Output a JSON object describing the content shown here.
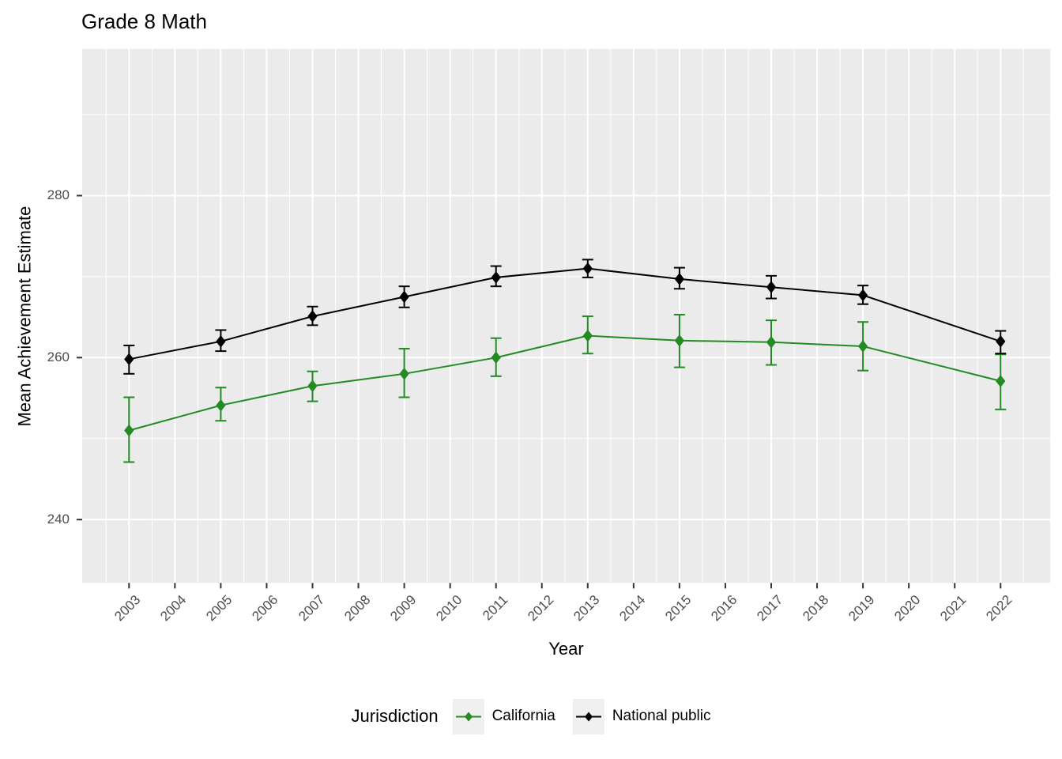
{
  "chart_data": {
    "type": "line",
    "title": "Grade 8 Math",
    "xlabel": "Year",
    "ylabel": "Mean Achievement Estimate",
    "legend_title": "Jurisdiction",
    "legend_position": "bottom",
    "marker": "diamond",
    "error_bars": true,
    "panel_background": "#EBEBEB",
    "grid_color": "#FFFFFF",
    "tick_text_color": "#4D4D4D",
    "x_tick_labels": [
      2003,
      2004,
      2005,
      2006,
      2007,
      2008,
      2009,
      2010,
      2011,
      2012,
      2013,
      2014,
      2015,
      2016,
      2017,
      2018,
      2019,
      2020,
      2021,
      2022
    ],
    "y_tick_labels": [
      240,
      260,
      280
    ],
    "y_minor_gridlines": [
      250,
      270,
      290
    ],
    "xlim": [
      2002,
      2023.1
    ],
    "ylim": [
      232,
      298.2
    ],
    "series": [
      {
        "name": "California",
        "color": "#228B22",
        "x": [
          2003,
          2005,
          2007,
          2009,
          2011,
          2013,
          2015,
          2017,
          2019,
          2022
        ],
        "y": [
          251.0,
          254.1,
          256.5,
          258.0,
          260.0,
          262.7,
          262.1,
          261.9,
          261.4,
          257.1
        ],
        "y_low": [
          247.1,
          252.2,
          254.6,
          255.1,
          257.7,
          260.5,
          258.8,
          259.1,
          258.4,
          253.6
        ],
        "y_high": [
          255.1,
          256.3,
          258.3,
          261.1,
          262.4,
          265.1,
          265.3,
          264.6,
          264.4,
          260.4
        ]
      },
      {
        "name": "National public",
        "color": "#000000",
        "x": [
          2003,
          2005,
          2007,
          2009,
          2011,
          2013,
          2015,
          2017,
          2019,
          2022
        ],
        "y": [
          259.8,
          262.0,
          265.1,
          267.5,
          269.9,
          271.0,
          269.7,
          268.7,
          267.7,
          262.0
        ],
        "y_low": [
          258.0,
          260.8,
          264.0,
          266.2,
          268.8,
          269.9,
          268.5,
          267.3,
          266.6,
          260.5
        ],
        "y_high": [
          261.5,
          263.4,
          266.3,
          268.8,
          271.3,
          272.1,
          271.1,
          270.1,
          268.9,
          263.3
        ]
      }
    ]
  }
}
